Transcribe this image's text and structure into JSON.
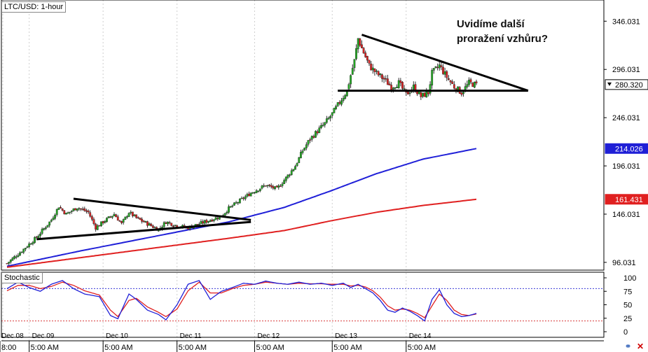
{
  "chart_data": {
    "type": "candlestick",
    "title": "LTC/USD: 1-hour",
    "annotation": [
      "Uvidíme další",
      "proražení vzhůru?"
    ],
    "price_axis": {
      "ticks": [
        "346.031",
        "296.031",
        "246.031",
        "196.031",
        "146.031",
        "96.031"
      ],
      "ylim": [
        88,
        368
      ]
    },
    "price_tags": [
      {
        "value": 280.32,
        "label": "280.320",
        "color": "#000000"
      },
      {
        "value": 214.026,
        "label": "214.026",
        "color": "#1f1fd6"
      },
      {
        "value": 161.431,
        "label": "161.431",
        "color": "#e02020"
      }
    ],
    "date_labels": [
      "Dec 08",
      "Dec 09",
      "Dec 10",
      "Dec 11",
      "Dec 12",
      "Dec 13",
      "Dec 14"
    ],
    "time_labels": [
      "8:00",
      "5:00 AM",
      "5:00 AM",
      "5:00 AM",
      "5:00 AM",
      "5:00 AM",
      "5:00 AM"
    ],
    "close_path": [
      [
        0,
        95
      ],
      [
        8,
        108
      ],
      [
        16,
        122
      ],
      [
        24,
        140
      ],
      [
        28,
        154
      ],
      [
        32,
        146
      ],
      [
        38,
        153
      ],
      [
        44,
        148
      ],
      [
        48,
        132
      ],
      [
        52,
        138
      ],
      [
        58,
        146
      ],
      [
        62,
        136
      ],
      [
        66,
        148
      ],
      [
        70,
        142
      ],
      [
        76,
        136
      ],
      [
        82,
        130
      ],
      [
        86,
        138
      ],
      [
        92,
        134
      ],
      [
        98,
        132
      ],
      [
        104,
        136
      ],
      [
        110,
        140
      ],
      [
        116,
        144
      ],
      [
        120,
        152
      ],
      [
        126,
        160
      ],
      [
        132,
        168
      ],
      [
        140,
        176
      ],
      [
        146,
        172
      ],
      [
        152,
        186
      ],
      [
        156,
        196
      ],
      [
        160,
        212
      ],
      [
        164,
        224
      ],
      [
        168,
        232
      ],
      [
        172,
        240
      ],
      [
        176,
        250
      ],
      [
        180,
        262
      ],
      [
        184,
        274
      ],
      [
        186,
        290
      ],
      [
        188,
        305
      ],
      [
        190,
        328
      ],
      [
        192,
        318
      ],
      [
        196,
        300
      ],
      [
        200,
        292
      ],
      [
        204,
        286
      ],
      [
        208,
        278
      ],
      [
        212,
        282
      ],
      [
        216,
        270
      ],
      [
        220,
        278
      ],
      [
        224,
        268
      ],
      [
        228,
        272
      ],
      [
        230,
        292
      ],
      [
        234,
        300
      ],
      [
        238,
        288
      ],
      [
        242,
        278
      ],
      [
        246,
        272
      ],
      [
        250,
        282
      ],
      [
        254,
        280
      ]
    ],
    "series": [
      {
        "name": "",
        "color": "#2020d8",
        "values": [
          [
            0,
            92
          ],
          [
            40,
            108
          ],
          [
            80,
            123
          ],
          [
            120,
            138
          ],
          [
            150,
            153
          ],
          [
            175,
            170
          ],
          [
            200,
            188
          ],
          [
            225,
            203
          ],
          [
            254,
            214
          ]
        ]
      },
      {
        "name": "",
        "color": "#e02020",
        "values": [
          [
            0,
            91
          ],
          [
            40,
            101
          ],
          [
            80,
            111
          ],
          [
            120,
            121
          ],
          [
            150,
            129
          ],
          [
            175,
            139
          ],
          [
            200,
            148
          ],
          [
            225,
            155
          ],
          [
            254,
            161.4
          ]
        ]
      }
    ],
    "trendlines": [
      {
        "from": [
          16,
          120
        ],
        "to": [
          132,
          138
        ]
      },
      {
        "from": [
          36,
          162
        ],
        "to": [
          132,
          140
        ]
      },
      {
        "from": [
          192,
          332
        ],
        "to": [
          282,
          274
        ]
      },
      {
        "from": [
          179,
          274
        ],
        "to": [
          282,
          274
        ]
      }
    ],
    "stochastic": {
      "label": "Stochastic",
      "ticks": [
        "100",
        "75",
        "50",
        "25",
        "0"
      ],
      "levels": [
        80,
        20
      ],
      "k": [
        [
          0,
          80
        ],
        [
          6,
          92
        ],
        [
          12,
          82
        ],
        [
          18,
          75
        ],
        [
          24,
          88
        ],
        [
          30,
          95
        ],
        [
          36,
          80
        ],
        [
          42,
          70
        ],
        [
          50,
          65
        ],
        [
          56,
          30
        ],
        [
          60,
          24
        ],
        [
          66,
          70
        ],
        [
          70,
          60
        ],
        [
          76,
          40
        ],
        [
          82,
          32
        ],
        [
          86,
          22
        ],
        [
          92,
          50
        ],
        [
          98,
          88
        ],
        [
          104,
          95
        ],
        [
          110,
          60
        ],
        [
          116,
          75
        ],
        [
          122,
          82
        ],
        [
          128,
          90
        ],
        [
          134,
          88
        ],
        [
          140,
          94
        ],
        [
          146,
          90
        ],
        [
          152,
          88
        ],
        [
          158,
          92
        ],
        [
          164,
          88
        ],
        [
          170,
          90
        ],
        [
          176,
          86
        ],
        [
          182,
          90
        ],
        [
          186,
          82
        ],
        [
          190,
          88
        ],
        [
          194,
          80
        ],
        [
          198,
          72
        ],
        [
          202,
          58
        ],
        [
          206,
          40
        ],
        [
          210,
          36
        ],
        [
          214,
          44
        ],
        [
          218,
          38
        ],
        [
          222,
          30
        ],
        [
          226,
          20
        ],
        [
          230,
          60
        ],
        [
          234,
          78
        ],
        [
          238,
          50
        ],
        [
          242,
          34
        ],
        [
          246,
          28
        ],
        [
          250,
          30
        ],
        [
          254,
          34
        ]
      ],
      "d": [
        [
          0,
          76
        ],
        [
          6,
          86
        ],
        [
          12,
          86
        ],
        [
          18,
          80
        ],
        [
          24,
          84
        ],
        [
          30,
          92
        ],
        [
          36,
          86
        ],
        [
          42,
          76
        ],
        [
          50,
          68
        ],
        [
          56,
          40
        ],
        [
          60,
          28
        ],
        [
          66,
          58
        ],
        [
          70,
          62
        ],
        [
          76,
          46
        ],
        [
          82,
          36
        ],
        [
          86,
          28
        ],
        [
          92,
          42
        ],
        [
          98,
          76
        ],
        [
          104,
          92
        ],
        [
          110,
          72
        ],
        [
          116,
          72
        ],
        [
          122,
          80
        ],
        [
          128,
          86
        ],
        [
          134,
          88
        ],
        [
          140,
          92
        ],
        [
          146,
          90
        ],
        [
          152,
          88
        ],
        [
          158,
          90
        ],
        [
          164,
          89
        ],
        [
          170,
          89
        ],
        [
          176,
          88
        ],
        [
          182,
          88
        ],
        [
          186,
          85
        ],
        [
          190,
          86
        ],
        [
          194,
          83
        ],
        [
          198,
          76
        ],
        [
          202,
          64
        ],
        [
          206,
          48
        ],
        [
          210,
          40
        ],
        [
          214,
          42
        ],
        [
          218,
          40
        ],
        [
          222,
          34
        ],
        [
          226,
          26
        ],
        [
          230,
          48
        ],
        [
          234,
          70
        ],
        [
          238,
          58
        ],
        [
          242,
          40
        ],
        [
          246,
          32
        ],
        [
          250,
          30
        ],
        [
          254,
          33
        ]
      ]
    },
    "colors": {
      "up": "#22aa22",
      "down": "#dd2222",
      "wick": "#333333"
    }
  }
}
